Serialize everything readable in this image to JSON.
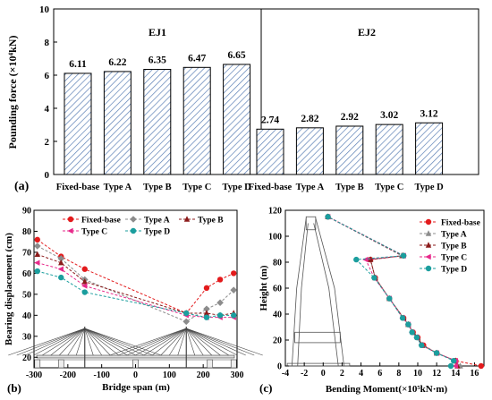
{
  "panel_labels": {
    "a": "(a)",
    "b": "(b)",
    "c": "(c)"
  },
  "chart_data": [
    {
      "type": "bar",
      "ylabel": "Pounding force (×10⁴kN)",
      "ylim": [
        0,
        10
      ],
      "yticks": [
        0,
        2,
        4,
        6,
        8,
        10
      ],
      "bar_pattern": "hatched",
      "groups": [
        {
          "name": "EJ1",
          "categories": [
            "Fixed-base",
            "Type A",
            "Type B",
            "Type C",
            "Type D"
          ],
          "values": [
            6.11,
            6.22,
            6.35,
            6.47,
            6.65
          ],
          "labels": [
            "6.11",
            "6.22",
            "6.35",
            "6.47",
            "6.65"
          ]
        },
        {
          "name": "EJ2",
          "categories": [
            "Fixed-base",
            "Type A",
            "Type B",
            "Type C",
            "Type D"
          ],
          "values": [
            2.74,
            2.82,
            2.92,
            3.02,
            3.12
          ],
          "labels": [
            "2.74",
            "2.82",
            "2.92",
            "3.02",
            "3.12"
          ]
        }
      ]
    },
    {
      "type": "line",
      "xlabel": "Bridge span (m)",
      "ylabel": "Bearing displacement (cm)",
      "xlim": [
        -300,
        300
      ],
      "ylim": [
        15,
        90
      ],
      "xticks": [
        -300,
        -200,
        -100,
        0,
        100,
        200,
        300
      ],
      "yticks": [
        20,
        30,
        40,
        50,
        60,
        70,
        80,
        90
      ],
      "legend": "top",
      "series": [
        {
          "name": "Fixed-base",
          "color": "#e31a1c",
          "marker": "circle",
          "x": [
            -290,
            -220,
            -150,
            150,
            210,
            250,
            290
          ],
          "y": [
            76,
            68,
            62,
            41,
            53,
            57,
            60
          ]
        },
        {
          "name": "Type A",
          "color": "#8c8c8c",
          "marker": "diamond",
          "x": [
            -290,
            -220,
            -150,
            150,
            210,
            250,
            290
          ],
          "y": [
            73,
            67,
            57,
            37,
            43,
            46,
            52
          ]
        },
        {
          "name": "Type B",
          "color": "#8b1a1a",
          "marker": "triangle",
          "x": [
            -290,
            -220,
            -150,
            150,
            210,
            250,
            290
          ],
          "y": [
            69,
            65,
            56,
            41,
            41,
            40,
            41
          ]
        },
        {
          "name": "Type C",
          "color": "#e7298a",
          "marker": "triangle-left",
          "x": [
            -290,
            -220,
            -150,
            150,
            210,
            250,
            290
          ],
          "y": [
            65,
            62,
            54,
            40,
            39,
            39,
            39
          ]
        },
        {
          "name": "Type D",
          "color": "#1b9e9e",
          "marker": "circle",
          "x": [
            -290,
            -220,
            -150,
            150,
            210,
            250,
            290
          ],
          "y": [
            61,
            58,
            51,
            41,
            39,
            40,
            40
          ]
        }
      ]
    },
    {
      "type": "line",
      "xlabel": "Bending Moment(×10⁵kN·m)",
      "ylabel": "Height (m)",
      "xlim": [
        -4,
        17
      ],
      "ylim": [
        0,
        120
      ],
      "xticks": [
        -4,
        -2,
        0,
        2,
        4,
        6,
        8,
        10,
        12,
        14,
        16
      ],
      "yticks": [
        0,
        20,
        40,
        60,
        80,
        100,
        120
      ],
      "legend": "right",
      "series": [
        {
          "name": "Fixed-base",
          "color": "#e31a1c",
          "marker": "circle",
          "x": [
            16.7,
            14,
            12,
            10.6,
            10,
            9.5,
            9,
            8.5,
            7,
            5.5,
            5,
            8.5,
            0.5
          ],
          "y": [
            0,
            4,
            10,
            16,
            22,
            26,
            32,
            37,
            52,
            68,
            82,
            85,
            115
          ]
        },
        {
          "name": "Type A",
          "color": "#8c8c8c",
          "marker": "triangle",
          "x": [
            14.5,
            14,
            12,
            10.5,
            10,
            9.5,
            9,
            8.5,
            7,
            5.5,
            5,
            8.3,
            0.5
          ],
          "y": [
            0,
            4,
            10,
            16,
            22,
            26,
            32,
            37,
            52,
            68,
            82,
            85,
            115
          ]
        },
        {
          "name": "Type B",
          "color": "#8b1a1a",
          "marker": "triangle",
          "x": [
            14.2,
            14,
            12,
            10.5,
            10,
            9.5,
            9,
            8.5,
            7,
            5.5,
            5,
            8.4,
            0.5
          ],
          "y": [
            0,
            4,
            10,
            16,
            22,
            26,
            32,
            37,
            52,
            68,
            82,
            85,
            115
          ]
        },
        {
          "name": "Type C",
          "color": "#e7298a",
          "marker": "triangle-left",
          "x": [
            14,
            14,
            12,
            10.4,
            9.9,
            9.4,
            9,
            8.4,
            7,
            5.4,
            4.5,
            8.5,
            0.5
          ],
          "y": [
            0,
            4,
            10,
            16,
            22,
            26,
            32,
            37,
            52,
            68,
            82,
            85,
            115
          ]
        },
        {
          "name": "Type D",
          "color": "#1b9e9e",
          "marker": "circle",
          "x": [
            13.5,
            13.8,
            12,
            10.4,
            9.9,
            9.4,
            9,
            8.4,
            7,
            5.4,
            3.5,
            8.5,
            0.5
          ],
          "y": [
            0,
            4,
            10,
            16,
            22,
            26,
            32,
            37,
            52,
            68,
            82,
            85,
            115
          ]
        }
      ]
    }
  ]
}
